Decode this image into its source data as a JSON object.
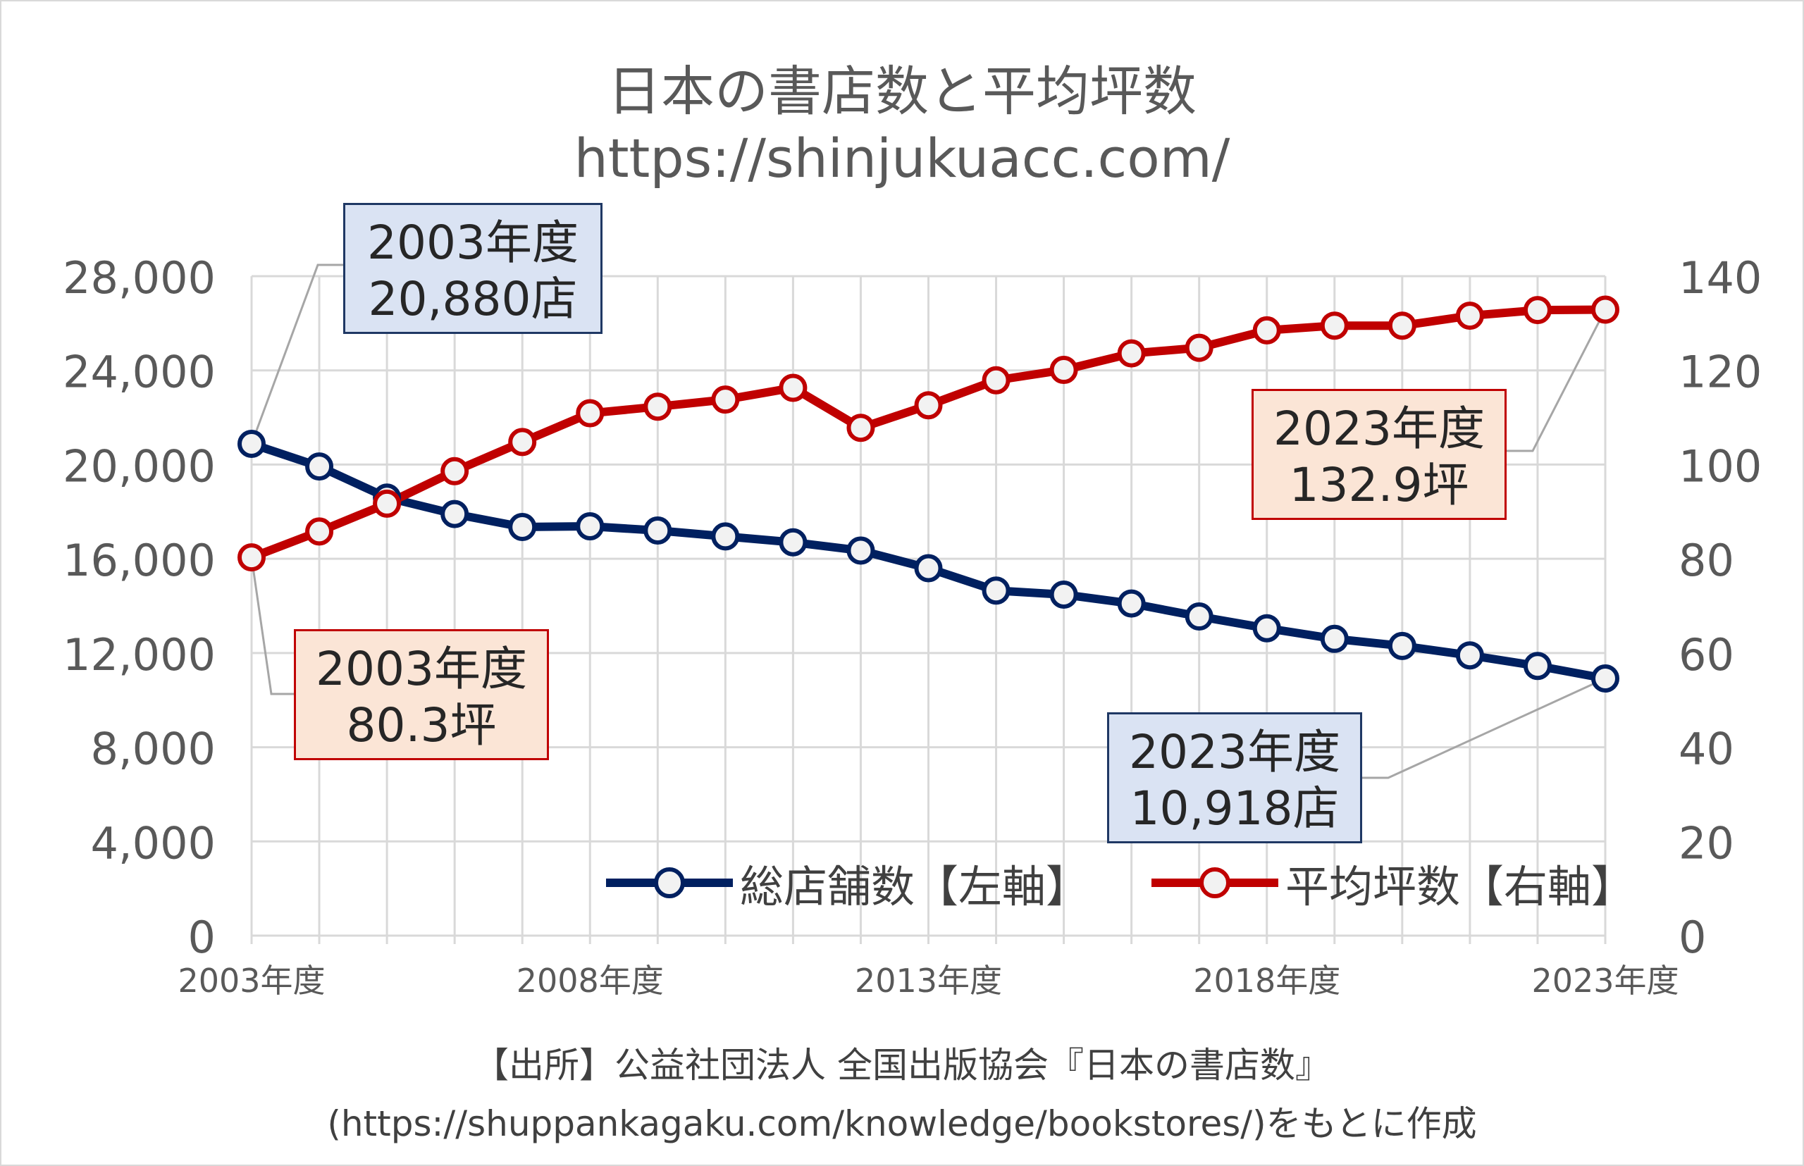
{
  "title": "日本の書店数と平均坪数",
  "subtitle": "https://shinjukuacc.com/",
  "source_line1": "【出所】公益社団法人 全国出版協会『日本の書店数』",
  "source_line2": "(https://shuppankagaku.com/knowledge/bookstores/)をもとに作成",
  "colors": {
    "stores": "#002060",
    "area": "#c00000",
    "marker_fill": "#f2f2f2",
    "grid": "#d9d9d9",
    "axis_text": "#595959"
  },
  "callouts": {
    "stores_2003": {
      "line1": "2003年度",
      "line2": "20,880店"
    },
    "area_2003": {
      "line1": "2003年度",
      "line2": "80.3坪"
    },
    "area_2023": {
      "line1": "2023年度",
      "line2": "132.9坪"
    },
    "stores_2023": {
      "line1": "2023年度",
      "line2": "10,918店"
    }
  },
  "chart_data": {
    "type": "line",
    "title": "日本の書店数と平均坪数",
    "x": [
      "2003年度",
      "2004年度",
      "2005年度",
      "2006年度",
      "2007年度",
      "2008年度",
      "2009年度",
      "2010年度",
      "2011年度",
      "2012年度",
      "2013年度",
      "2014年度",
      "2015年度",
      "2016年度",
      "2017年度",
      "2018年度",
      "2019年度",
      "2020年度",
      "2021年度",
      "2022年度",
      "2023年度"
    ],
    "x_tick_labels": [
      "2003年度",
      "2008年度",
      "2013年度",
      "2018年度",
      "2023年度"
    ],
    "y_left": {
      "lim": [
        0,
        28000
      ],
      "ticks": [
        "0",
        "4,000",
        "8,000",
        "12,000",
        "16,000",
        "20,000",
        "24,000",
        "28,000"
      ]
    },
    "y_right": {
      "lim": [
        0,
        140
      ],
      "ticks": [
        "0",
        "20",
        "40",
        "60",
        "80",
        "100",
        "120",
        "140"
      ]
    },
    "grid": true,
    "legend_position": "bottom-right",
    "series": [
      {
        "name": "総店舗数【左軸】",
        "axis": "left",
        "values": [
          20880,
          19920,
          18600,
          17900,
          17350,
          17380,
          17200,
          16950,
          16700,
          16350,
          15600,
          14650,
          14480,
          14100,
          13550,
          13050,
          12600,
          12300,
          11900,
          11450,
          10918
        ]
      },
      {
        "name": "平均坪数【右軸】",
        "axis": "right",
        "values": [
          80.3,
          85.8,
          91.7,
          98.6,
          104.8,
          110.9,
          112.3,
          113.8,
          116.3,
          107.8,
          112.6,
          117.9,
          120.1,
          123.6,
          124.8,
          128.5,
          129.5,
          129.5,
          131.6,
          132.8,
          132.9
        ]
      }
    ]
  }
}
